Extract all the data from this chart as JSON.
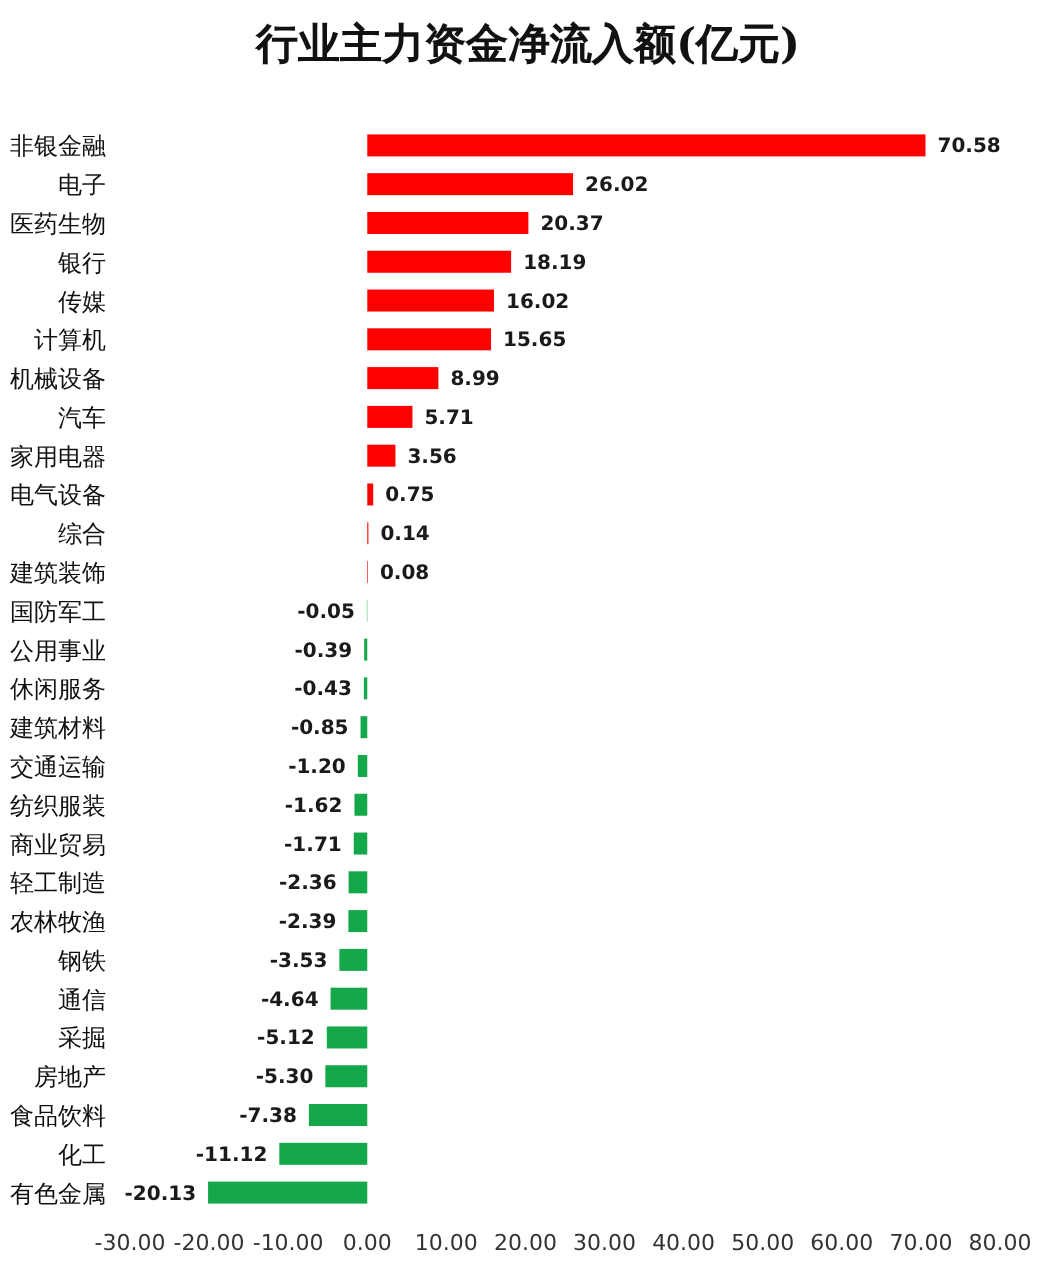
{
  "chart_data": {
    "type": "bar",
    "orientation": "horizontal",
    "title": "行业主力资金净流入额(亿元)",
    "categories": [
      "非银金融",
      "电子",
      "医药生物",
      "银行",
      "传媒",
      "计算机",
      "机械设备",
      "汽车",
      "家用电器",
      "电气设备",
      "综合",
      "建筑装饰",
      "国防军工",
      "公用事业",
      "休闲服务",
      "建筑材料",
      "交通运输",
      "纺织服装",
      "商业贸易",
      "轻工制造",
      "农林牧渔",
      "钢铁",
      "通信",
      "采掘",
      "房地产",
      "食品饮料",
      "化工",
      "有色金属"
    ],
    "values": [
      70.58,
      26.02,
      20.37,
      18.19,
      16.02,
      15.65,
      8.99,
      5.71,
      3.56,
      0.75,
      0.14,
      0.08,
      -0.05,
      -0.39,
      -0.43,
      -0.85,
      -1.2,
      -1.62,
      -1.71,
      -2.36,
      -2.39,
      -3.53,
      -4.64,
      -5.12,
      -5.3,
      -7.38,
      -11.12,
      -20.13
    ],
    "value_labels": [
      "70.58",
      "26.02",
      "20.37",
      "18.19",
      "16.02",
      "15.65",
      "8.99",
      "5.71",
      "3.56",
      "0.75",
      "0.14",
      "0.08",
      "-0.05",
      "-0.39",
      "-0.43",
      "-0.85",
      "-1.20",
      "-1.62",
      "-1.71",
      "-2.36",
      "-2.39",
      "-3.53",
      "-4.64",
      "-5.12",
      "-5.30",
      "-7.38",
      "-11.12",
      "-20.13"
    ],
    "colors": [
      "#ff0000",
      "#ff0000",
      "#ff0000",
      "#ff0000",
      "#ff0000",
      "#ff0000",
      "#ff0000",
      "#ff0000",
      "#ff0000",
      "#ff0000",
      "#ff0000",
      "#ff0000",
      "#14a84b",
      "#14a84b",
      "#14a84b",
      "#14a84b",
      "#14a84b",
      "#14a84b",
      "#14a84b",
      "#14a84b",
      "#14a84b",
      "#14a84b",
      "#14a84b",
      "#14a84b",
      "#14a84b",
      "#14a84b",
      "#14a84b",
      "#14a84b"
    ],
    "xlim": [
      -30,
      80
    ],
    "xticks": [
      {
        "value": -30,
        "label": "-30.00"
      },
      {
        "value": -20,
        "label": "-20.00"
      },
      {
        "value": -10,
        "label": "-10.00"
      },
      {
        "value": 0,
        "label": "0.00"
      },
      {
        "value": 10,
        "label": "10.00"
      },
      {
        "value": 20,
        "label": "20.00"
      },
      {
        "value": 30,
        "label": "30.00"
      },
      {
        "value": 40,
        "label": "40.00"
      },
      {
        "value": 50,
        "label": "50.00"
      },
      {
        "value": 60,
        "label": "60.00"
      },
      {
        "value": 70,
        "label": "70.00"
      },
      {
        "value": 80,
        "label": "80.00"
      }
    ]
  }
}
